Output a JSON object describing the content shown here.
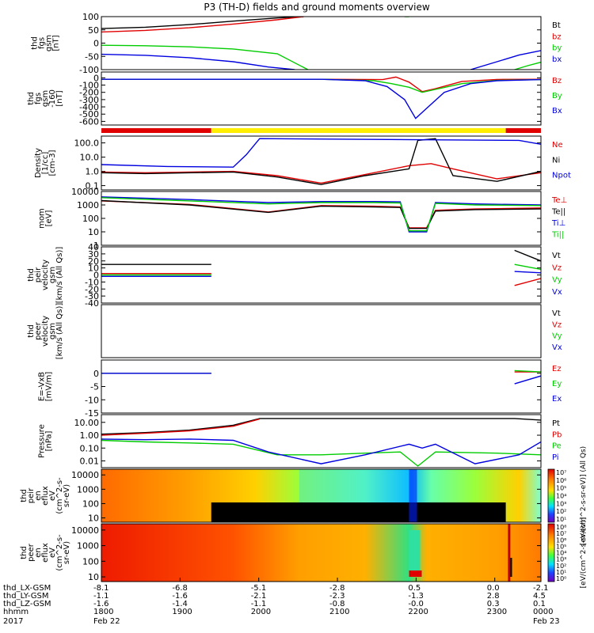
{
  "title": "P3 (TH-D) fields and ground moments overview",
  "chart_data": [
    {
      "type": "line",
      "panel": "fgs_gsm",
      "ylabel": [
        "thd",
        "fgs",
        "gsm",
        "[nT]"
      ],
      "ylim": [
        -100,
        100
      ],
      "yticks": [
        "100",
        "50",
        "0",
        "-50",
        "-100"
      ],
      "series": [
        {
          "name": "Bt",
          "color": "#000000",
          "x": [
            0.0,
            0.1,
            0.2,
            0.3,
            0.4,
            0.46
          ],
          "values": [
            55,
            60,
            70,
            83,
            95,
            100
          ]
        },
        {
          "name": "bz",
          "color": "#e00000",
          "x": [
            0.0,
            0.1,
            0.2,
            0.3,
            0.4,
            0.46
          ],
          "values": [
            42,
            48,
            58,
            72,
            88,
            100
          ]
        },
        {
          "name": "by",
          "color": "#00cc00",
          "x": [
            0.0,
            0.1,
            0.2,
            0.3,
            0.4,
            0.47,
            0.68,
            0.69,
            0.7,
            0.71,
            0.94,
            0.97,
            1.0
          ],
          "values": [
            -8,
            -10,
            -14,
            -22,
            -40,
            -100,
            null,
            100,
            100,
            null,
            -100,
            -85,
            -72
          ]
        },
        {
          "name": "bx",
          "color": "#0000e0",
          "x": [
            0.0,
            0.1,
            0.2,
            0.3,
            0.38,
            0.44,
            0.78,
            0.84,
            0.9,
            0.95,
            1.0
          ],
          "values": [
            -42,
            -46,
            -55,
            -70,
            -90,
            -100,
            null,
            -100,
            -70,
            -45,
            -28
          ]
        }
      ],
      "legend": [
        "Bt",
        "bz",
        "by",
        "bx"
      ]
    },
    {
      "type": "line",
      "panel": "fgs_gsm_zoom",
      "ylabel": [
        "thd",
        "fgs",
        "gsm",
        "-160",
        "[nT]"
      ],
      "ylim": [
        -650,
        80
      ],
      "yticks": [
        "0",
        "-100",
        "-200",
        "-300",
        "-400",
        "-500",
        "-600"
      ],
      "series": [
        {
          "name": "Bz",
          "color": "#e00000",
          "x": [
            0.0,
            0.5,
            0.64,
            0.67,
            0.7,
            0.73,
            0.76,
            0.82,
            0.9,
            1.0
          ],
          "values": [
            -20,
            -20,
            -25,
            10,
            -60,
            -190,
            -150,
            -50,
            -22,
            -20
          ]
        },
        {
          "name": "By",
          "color": "#00cc00",
          "x": [
            0.0,
            0.5,
            0.62,
            0.66,
            0.7,
            0.73,
            0.76,
            0.82,
            0.9,
            1.0
          ],
          "values": [
            -20,
            -20,
            -40,
            -80,
            -130,
            -200,
            -160,
            -80,
            -35,
            -25
          ]
        },
        {
          "name": "Bx",
          "color": "#0000e0",
          "x": [
            0.0,
            0.5,
            0.6,
            0.65,
            0.69,
            0.715,
            0.74,
            0.78,
            0.84,
            0.9,
            1.0
          ],
          "values": [
            -20,
            -20,
            -40,
            -120,
            -300,
            -560,
            -420,
            -200,
            -80,
            -40,
            -25
          ]
        }
      ],
      "legend": [
        "Bz",
        "By",
        "Bx"
      ]
    },
    {
      "type": "line",
      "panel": "density",
      "ylabel": [
        "Density",
        "[1/cc]",
        "[cm-3]"
      ],
      "yscale": "log",
      "ylim": [
        0.05,
        300
      ],
      "yticks": [
        "100.0",
        "10.0",
        "1.0",
        "0.1"
      ],
      "series": [
        {
          "name": "Ne",
          "color": "#e00000",
          "x": [
            0.0,
            0.1,
            0.3,
            0.4,
            0.5,
            0.6,
            0.7,
            0.75,
            0.8,
            0.9,
            1.0
          ],
          "values": [
            0.9,
            0.8,
            1.0,
            0.5,
            0.15,
            0.6,
            2.5,
            3.5,
            1.5,
            0.3,
            0.8
          ]
        },
        {
          "name": "Ni",
          "color": "#000000",
          "x": [
            0.0,
            0.1,
            0.3,
            0.4,
            0.5,
            0.6,
            0.7,
            0.72,
            0.76,
            0.8,
            0.9,
            1.0
          ],
          "values": [
            0.8,
            0.7,
            0.9,
            0.4,
            0.12,
            0.5,
            1.5,
            150,
            200,
            0.5,
            0.2,
            1.0
          ]
        },
        {
          "name": "Npot",
          "color": "#0000e0",
          "x": [
            0.0,
            0.15,
            0.3,
            0.33,
            0.36,
            0.95,
            1.0
          ],
          "values": [
            3,
            2.2,
            2,
            15,
            200,
            150,
            80
          ]
        }
      ],
      "legend": [
        "Ne",
        "Ni",
        "Npot"
      ]
    },
    {
      "type": "line",
      "panel": "temperature",
      "ylabel": [
        "mom",
        "[eV]"
      ],
      "yscale": "log",
      "ylim": [
        1,
        10000
      ],
      "yticks": [
        "10000",
        "1000",
        "100",
        "10",
        "1"
      ],
      "series": [
        {
          "name": "Te⊥",
          "color": "#e00000",
          "x": [
            0.0,
            0.2,
            0.38,
            0.5,
            0.62,
            0.68,
            0.7,
            0.74,
            0.76,
            0.85,
            1.0
          ],
          "values": [
            2000,
            1100,
            300,
            900,
            800,
            700,
            20,
            20,
            400,
            500,
            600
          ]
        },
        {
          "name": "Te||",
          "color": "#000000",
          "x": [
            0.0,
            0.2,
            0.38,
            0.5,
            0.62,
            0.68,
            0.7,
            0.74,
            0.76,
            0.85,
            1.0
          ],
          "values": [
            2100,
            1000,
            280,
            800,
            700,
            650,
            18,
            18,
            350,
            450,
            500
          ]
        },
        {
          "name": "Ti⊥",
          "color": "#0000e0",
          "x": [
            0.0,
            0.2,
            0.38,
            0.5,
            0.62,
            0.68,
            0.7,
            0.74,
            0.76,
            0.85,
            1.0
          ],
          "values": [
            4000,
            2500,
            1500,
            1800,
            1800,
            1700,
            10,
            10,
            1500,
            1200,
            1000
          ]
        },
        {
          "name": "Ti||",
          "color": "#00cc00",
          "x": [
            0.0,
            0.2,
            0.38,
            0.5,
            0.62,
            0.68,
            0.7,
            0.74,
            0.76,
            0.85,
            1.0
          ],
          "values": [
            3500,
            2000,
            1200,
            1500,
            1500,
            1400,
            12,
            12,
            1300,
            1000,
            900
          ]
        }
      ],
      "legend": [
        "Te⊥",
        "Te||",
        "Ti⊥",
        "Ti||"
      ]
    },
    {
      "type": "line",
      "panel": "peir_velocity",
      "ylabel": [
        "thd",
        "peir",
        "velocity",
        "gsm",
        "[km/s (All Qs)]"
      ],
      "ylim": [
        -40,
        40
      ],
      "yticks": [
        "40",
        "30",
        "20",
        "10",
        "0",
        "-10",
        "-20",
        "-30",
        "-40"
      ],
      "series": [
        {
          "name": "Vt",
          "color": "#000000",
          "x": [
            0.0,
            0.25,
            null,
            0.94,
            1.0
          ],
          "values": [
            15,
            15,
            null,
            35,
            20
          ]
        },
        {
          "name": "Vz",
          "color": "#e00000",
          "x": [
            0.0,
            0.25,
            null,
            0.94,
            1.0
          ],
          "values": [
            2,
            2,
            null,
            -15,
            -5
          ]
        },
        {
          "name": "Vy",
          "color": "#00cc00",
          "x": [
            0.0,
            0.25,
            null,
            0.94,
            1.0
          ],
          "values": [
            0,
            0,
            null,
            15,
            8
          ]
        },
        {
          "name": "Vx",
          "color": "#0000e0",
          "x": [
            0.0,
            0.25,
            null,
            0.94,
            1.0
          ],
          "values": [
            -2,
            -2,
            null,
            5,
            3
          ]
        }
      ],
      "legend": [
        "Vt",
        "Vz",
        "Vy",
        "Vx"
      ]
    },
    {
      "type": "line",
      "panel": "peer_velocity",
      "ylabel": [
        "thd",
        "peer",
        "velocity",
        "gsm",
        "[km/s (All Qs)]"
      ],
      "series": [],
      "legend": [
        "Vt",
        "Vz",
        "Vy",
        "Vx"
      ]
    },
    {
      "type": "line",
      "panel": "efield",
      "ylabel": [
        "E=-VxB",
        "[mV/m]"
      ],
      "ylim": [
        -15,
        5
      ],
      "yticks": [
        "0",
        "-5",
        "-10",
        "-15"
      ],
      "series": [
        {
          "name": "Ez",
          "color": "#e00000",
          "x": [
            0.0,
            0.25,
            null,
            0.94,
            1.0
          ],
          "values": [
            0,
            0,
            null,
            0.5,
            0.5
          ]
        },
        {
          "name": "Ey",
          "color": "#00cc00",
          "x": [
            0.0,
            0.25,
            null,
            0.94,
            1.0
          ],
          "values": [
            0,
            0,
            null,
            1,
            0.5
          ]
        },
        {
          "name": "Ex",
          "color": "#0000e0",
          "x": [
            0.0,
            0.25,
            null,
            0.94,
            1.0
          ],
          "values": [
            0,
            0,
            null,
            -4,
            -1
          ]
        }
      ],
      "legend": [
        "Ez",
        "Ey",
        "Ex"
      ]
    },
    {
      "type": "line",
      "panel": "pressure",
      "ylabel": [
        "Pressure",
        "[nPa]"
      ],
      "yscale": "log",
      "ylim": [
        0.003,
        40
      ],
      "yticks": [
        "10.00",
        "1.00",
        "0.10",
        "0.01"
      ],
      "series": [
        {
          "name": "Pt",
          "color": "#000000",
          "x": [
            0.0,
            0.1,
            0.2,
            0.3,
            0.36,
            0.94,
            1.0
          ],
          "values": [
            1.2,
            1.6,
            2.5,
            6,
            20,
            20,
            15
          ]
        },
        {
          "name": "Pb",
          "color": "#e00000",
          "x": [
            0.0,
            0.1,
            0.2,
            0.3,
            0.36
          ],
          "values": [
            1.0,
            1.4,
            2.2,
            5,
            18
          ]
        },
        {
          "name": "Pe",
          "color": "#00cc00",
          "x": [
            0.0,
            0.1,
            0.2,
            0.3,
            0.4,
            0.5,
            0.6,
            0.68,
            0.72,
            0.76,
            0.9,
            1.0
          ],
          "values": [
            0.4,
            0.3,
            0.25,
            0.2,
            0.03,
            0.03,
            0.04,
            0.05,
            0.004,
            0.05,
            0.04,
            0.03
          ]
        },
        {
          "name": "Pi",
          "color": "#0000e0",
          "x": [
            0.0,
            0.1,
            0.2,
            0.3,
            0.38,
            0.5,
            0.6,
            0.7,
            0.73,
            0.76,
            0.85,
            0.95,
            1.0
          ],
          "values": [
            0.5,
            0.45,
            0.5,
            0.4,
            0.05,
            0.006,
            0.03,
            0.2,
            0.1,
            0.2,
            0.006,
            0.03,
            0.3
          ]
        }
      ],
      "legend": [
        "Pt",
        "Pb",
        "Pe",
        "Pi"
      ]
    },
    {
      "type": "heatmap",
      "panel": "peir_en_eflux",
      "ylabel": [
        "thd",
        "peir",
        "en",
        "eflux",
        "eV",
        "(cm^2-s-",
        "sr-eV)"
      ],
      "yscale": "log",
      "ylim": [
        5,
        25000
      ],
      "yticks": [
        "10000",
        "1000",
        "100",
        "10"
      ]
    },
    {
      "type": "heatmap",
      "panel": "peer_en_eflux",
      "ylabel": [
        "thd",
        "peer",
        "en",
        "eflux",
        "eV",
        "(cm^2-s-",
        "sr-eV)"
      ],
      "yscale": "log",
      "ylim": [
        5,
        25000
      ],
      "yticks": [
        "10000",
        "1000",
        "100",
        "10"
      ]
    }
  ],
  "mode_bar": {
    "segments": [
      {
        "from": 0.0,
        "to": 0.25,
        "color": "#e00000"
      },
      {
        "from": 0.25,
        "to": 0.92,
        "color": "#ffee00"
      },
      {
        "from": 0.92,
        "to": 1.0,
        "color": "#e00000"
      }
    ]
  },
  "colorbars": [
    {
      "label": "[eV/(cm^2-s-sr-eV)] (All Qs)",
      "ticks": [
        "10⁷",
        "10⁶",
        "10⁵",
        "10⁴",
        "10³",
        "10²",
        "10¹"
      ]
    },
    {
      "label": "[eV/(cm^2-s-sr-eV)]",
      "ticks": [
        "10⁸",
        "10⁷",
        "10⁶",
        "10⁵",
        "10⁴",
        "10³",
        "10²",
        "10¹",
        "10⁰"
      ]
    }
  ],
  "x_axis": {
    "rows": [
      {
        "label": "thd_LX-GSM",
        "values": [
          "-8.1",
          "-6.8",
          "-5.1",
          "-2.8",
          "0.5",
          "0.0",
          "-2.1"
        ]
      },
      {
        "label": "thd_LY-GSM",
        "values": [
          "-1.1",
          "-1.6",
          "-2.1",
          "-2.3",
          "-1.3",
          "2.8",
          "4.5"
        ]
      },
      {
        "label": "thd_LZ-GSM",
        "values": [
          "-1.6",
          "-1.4",
          "-1.1",
          "-0.8",
          "-0.0",
          "0.3",
          "0.1"
        ]
      },
      {
        "label": "hhmm",
        "values": [
          "1800",
          "1900",
          "2000",
          "2100",
          "2200",
          "2300",
          "0000"
        ]
      },
      {
        "label": "2017",
        "values": [
          "Feb 22",
          "",
          "",
          "",
          "",
          "",
          "Feb 23"
        ]
      }
    ]
  }
}
